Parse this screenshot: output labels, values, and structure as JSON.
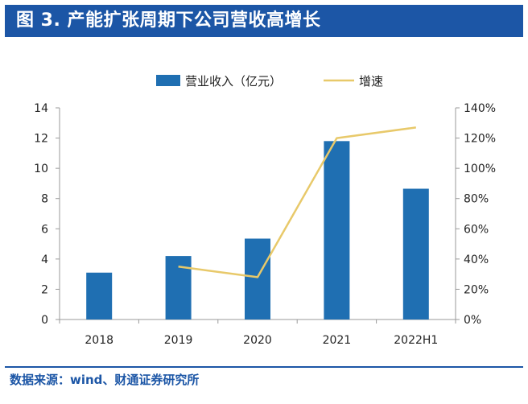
{
  "title": "图 3. 产能扩张周期下公司营收高增长",
  "source": "数据来源：wind、财通证券研究所",
  "colors": {
    "bar": "#1f6fb2",
    "line": "#e8c96a",
    "header": "#1c56a6",
    "axis": "#9a9a9a"
  },
  "chart_data": {
    "type": "bar",
    "categories": [
      "2018",
      "2019",
      "2020",
      "2021",
      "2022H1"
    ],
    "series": [
      {
        "name": "营业收入（亿元）",
        "type": "bar",
        "axis": "left",
        "values": [
          3.1,
          4.2,
          5.35,
          11.8,
          8.65
        ]
      },
      {
        "name": "增速",
        "type": "line",
        "axis": "right",
        "values": [
          null,
          0.35,
          0.28,
          1.2,
          1.27
        ]
      }
    ],
    "y_left": {
      "min": 0,
      "max": 14,
      "ticks": [
        "0",
        "2",
        "4",
        "6",
        "8",
        "10",
        "12",
        "14"
      ]
    },
    "y_right": {
      "min": 0,
      "max": 1.4,
      "ticks": [
        "0%",
        "20%",
        "40%",
        "60%",
        "80%",
        "100%",
        "120%",
        "140%"
      ]
    },
    "legend_position": "top",
    "grid": false
  }
}
